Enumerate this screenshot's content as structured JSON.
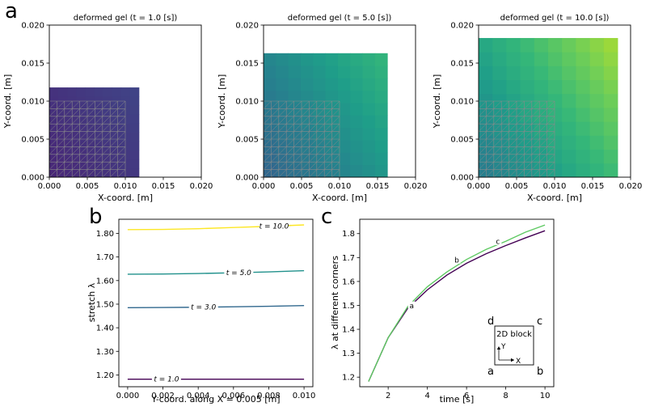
{
  "panel_letters": {
    "a": "a",
    "b": "b",
    "c": "c"
  },
  "colors": {
    "grid_line": "#8a8a8a",
    "curve_purple": "#440154",
    "curve_green": "#5ec962"
  },
  "chart_data": [
    {
      "type": "heatmap",
      "title": "deformed gel (t = 1.0 [s])",
      "xlabel": "X-coord. [m]",
      "ylabel": "Y-coord. [m]",
      "xlim": [
        0,
        0.02
      ],
      "ylim": [
        0,
        0.02
      ],
      "x_ticks": [
        "0.000",
        "0.005",
        "0.010",
        "0.015",
        "0.020"
      ],
      "y_ticks": [
        "0.000",
        "0.005",
        "0.010",
        "0.015",
        "0.020"
      ],
      "deformed_extent": [
        0.0118,
        0.0118
      ],
      "reference_mesh": {
        "extent": [
          0.01,
          0.01
        ],
        "divisions": 10
      },
      "colormap": "viridis"
    },
    {
      "type": "heatmap",
      "title": "deformed gel (t = 5.0 [s])",
      "xlabel": "X-coord. [m]",
      "ylabel": "Y-coord. [m]",
      "xlim": [
        0,
        0.02
      ],
      "ylim": [
        0,
        0.02
      ],
      "x_ticks": [
        "0.000",
        "0.005",
        "0.010",
        "0.015",
        "0.020"
      ],
      "y_ticks": [
        "0.000",
        "0.005",
        "0.010",
        "0.015",
        "0.020"
      ],
      "deformed_extent": [
        0.0163,
        0.0163
      ],
      "reference_mesh": {
        "extent": [
          0.01,
          0.01
        ],
        "divisions": 10
      },
      "colormap": "viridis"
    },
    {
      "type": "heatmap",
      "title": "deformed gel (t = 10.0 [s])",
      "xlabel": "X-coord. [m]",
      "ylabel": "Y-coord. [m]",
      "xlim": [
        0,
        0.02
      ],
      "ylim": [
        0,
        0.02
      ],
      "x_ticks": [
        "0.000",
        "0.005",
        "0.010",
        "0.015",
        "0.020"
      ],
      "y_ticks": [
        "0.000",
        "0.005",
        "0.010",
        "0.015",
        "0.020"
      ],
      "deformed_extent": [
        0.0183,
        0.0183
      ],
      "reference_mesh": {
        "extent": [
          0.01,
          0.01
        ],
        "divisions": 10
      },
      "colormap": "viridis"
    },
    {
      "type": "line",
      "title": "",
      "xlabel": "Y-coord. along X = 0.005 [m]",
      "ylabel": "stretch λ",
      "xlim": [
        -0.0005,
        0.0105
      ],
      "ylim": [
        1.15,
        1.86
      ],
      "x_ticks": [
        0,
        0.002,
        0.004,
        0.006,
        0.008,
        0.01
      ],
      "x_tick_labels": [
        "0.000",
        "0.002",
        "0.004",
        "0.006",
        "0.008",
        "0.010"
      ],
      "y_ticks": [
        1.2,
        1.3,
        1.4,
        1.5,
        1.6,
        1.7,
        1.8
      ],
      "y_tick_labels": [
        "1.20",
        "1.30",
        "1.40",
        "1.50",
        "1.60",
        "1.70",
        "1.80"
      ],
      "x": [
        0,
        0.002,
        0.004,
        0.006,
        0.008,
        0.01
      ],
      "series": [
        {
          "name": "t = 1.0",
          "label": "t = 1.0",
          "label_x": 0.0022,
          "color": "#440154",
          "values": [
            1.182,
            1.182,
            1.182,
            1.182,
            1.182,
            1.182
          ]
        },
        {
          "name": "t = 3.0",
          "label": "t = 3.0",
          "label_x": 0.0043,
          "color": "#31688e",
          "values": [
            1.485,
            1.486,
            1.487,
            1.489,
            1.491,
            1.494
          ]
        },
        {
          "name": "t = 5.0",
          "label": "t = 5.0",
          "label_x": 0.0063,
          "color": "#21918c",
          "values": [
            1.627,
            1.628,
            1.63,
            1.633,
            1.637,
            1.642
          ]
        },
        {
          "name": "t = 10.0",
          "label": "t = 10.0",
          "label_x": 0.0083,
          "color": "#fde725",
          "values": [
            1.816,
            1.817,
            1.82,
            1.825,
            1.83,
            1.836
          ]
        }
      ]
    },
    {
      "type": "line",
      "title": "",
      "xlabel": "time [s]",
      "ylabel": "λ at different corners",
      "xlim": [
        0.55,
        10.45
      ],
      "ylim": [
        1.16,
        1.86
      ],
      "x_ticks": [
        2,
        4,
        6,
        8,
        10
      ],
      "x_tick_labels": [
        "2",
        "4",
        "6",
        "8",
        "10"
      ],
      "y_ticks": [
        1.2,
        1.3,
        1.4,
        1.5,
        1.6,
        1.7,
        1.8
      ],
      "y_tick_labels": [
        "1.2",
        "1.3",
        "1.4",
        "1.5",
        "1.6",
        "1.7",
        "1.8"
      ],
      "x": [
        1,
        2,
        3,
        4,
        5,
        6,
        7,
        8,
        9,
        10
      ],
      "series": [
        {
          "name": "corners a, b",
          "color": "#440154",
          "values": [
            1.182,
            1.365,
            1.488,
            1.565,
            1.627,
            1.676,
            1.716,
            1.75,
            1.782,
            1.812
          ]
        },
        {
          "name": "corners c, d",
          "color": "#5ec962",
          "values": [
            1.182,
            1.365,
            1.495,
            1.578,
            1.64,
            1.692,
            1.734,
            1.768,
            1.806,
            1.836
          ]
        }
      ],
      "annotations": [
        {
          "text": "a",
          "x": 3.2,
          "y": 1.496
        },
        {
          "text": "b",
          "x": 5.5,
          "y": 1.688
        },
        {
          "text": "c",
          "x": 7.6,
          "y": 1.766
        }
      ],
      "inset": {
        "title": "2D block",
        "corners": [
          "a",
          "b",
          "c",
          "d"
        ],
        "axis_x": "X",
        "axis_y": "Y"
      }
    }
  ]
}
